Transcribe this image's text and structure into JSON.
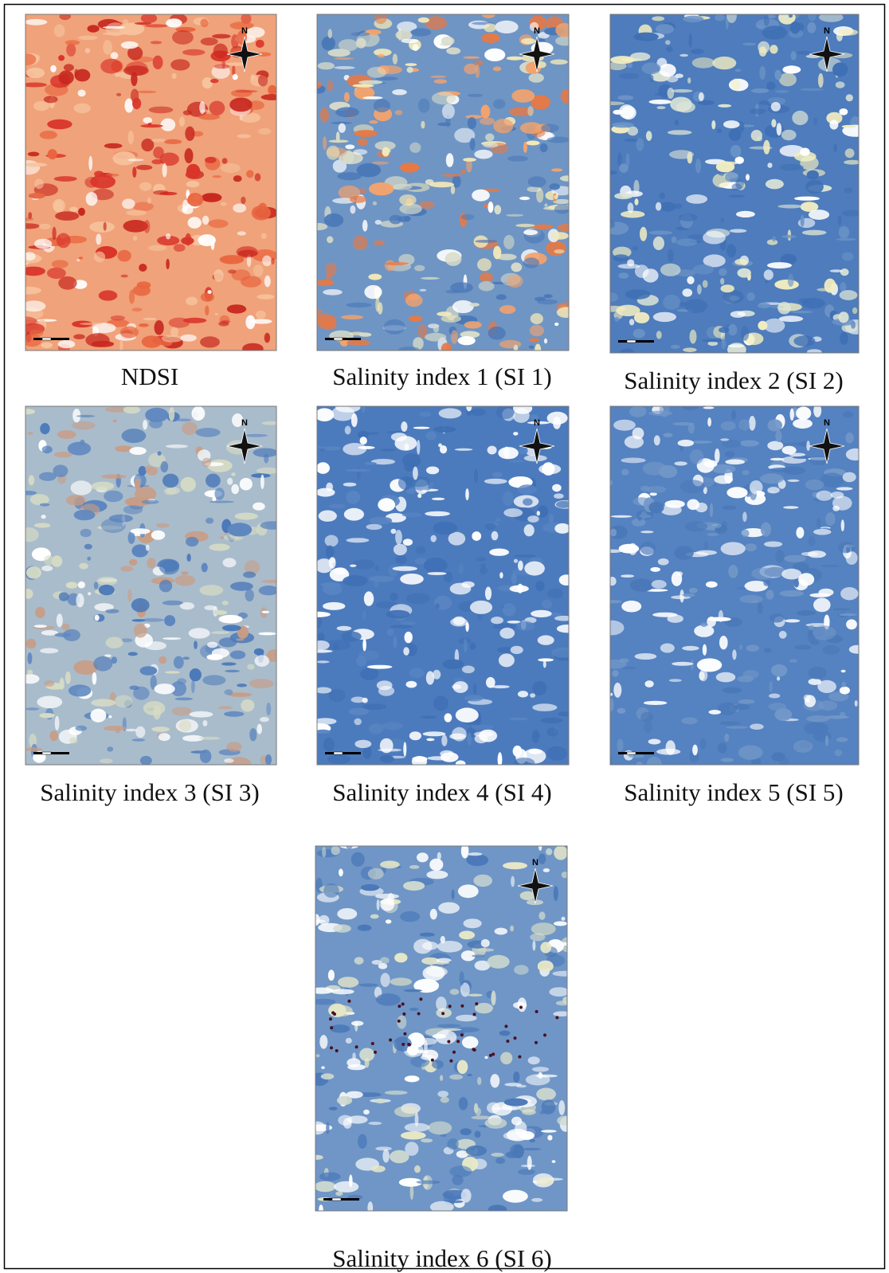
{
  "north_label": "N",
  "panels": [
    {
      "caption": "NDSI"
    },
    {
      "caption": "Salinity index 1 (SI 1)"
    },
    {
      "caption": "Salinity index 2 (SI 2)"
    },
    {
      "caption": "Salinity index 3 (SI 3)"
    },
    {
      "caption": "Salinity index 4 (SI 4)"
    },
    {
      "caption": "Salinity index 5 (SI 5)"
    },
    {
      "caption": "Salinity index 6 (SI 6)"
    }
  ]
}
